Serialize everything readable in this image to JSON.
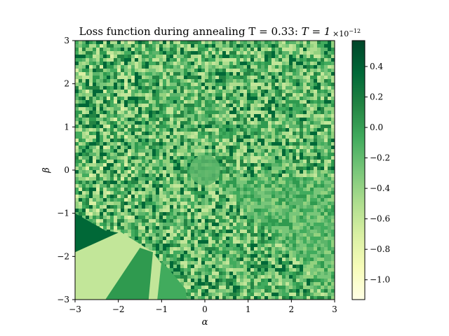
{
  "chart_data": {
    "type": "heatmap",
    "title": "Loss function during annealing T = 0.33: T = 1",
    "title_plain": "Loss function during annealing T = 0.33: ",
    "title_math": "T = 1",
    "xlabel": "α",
    "ylabel": "β",
    "xlim": [
      -3,
      3
    ],
    "ylim": [
      -3,
      3
    ],
    "xticks": [
      -3,
      -2,
      -1,
      0,
      1,
      2,
      3
    ],
    "yticks": [
      -3,
      -2,
      -1,
      0,
      1,
      2,
      3
    ],
    "xtick_labels": [
      "−3",
      "−2",
      "−1",
      "0",
      "1",
      "2",
      "3"
    ],
    "ytick_labels": [
      "−3",
      "−2",
      "−1",
      "0",
      "1",
      "2",
      "3"
    ],
    "colormap": "YlGn",
    "colorbar": {
      "min": -1.13,
      "max": 0.57,
      "scale_base": "×10",
      "scale_exp": "−12",
      "ticks": [
        -1.0,
        -0.8,
        -0.6,
        -0.4,
        -0.2,
        0.0,
        0.2,
        0.4
      ],
      "tick_labels": [
        "−1.0",
        "−0.8",
        "−0.6",
        "−0.4",
        "−0.2",
        "0.0",
        "0.2",
        "0.4"
      ]
    },
    "grid": false
  }
}
